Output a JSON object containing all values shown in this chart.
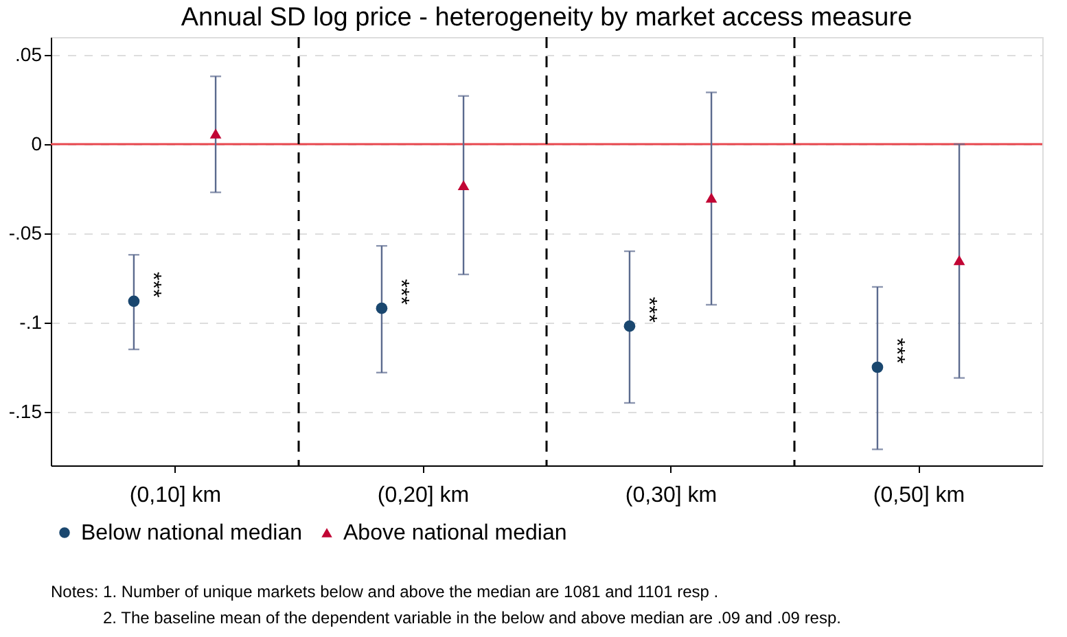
{
  "chart_data": {
    "type": "scatter",
    "title": "Annual SD log price - heterogeneity by market access measure",
    "categories": [
      "(0,10] km",
      "(0,20] km",
      "(0,30] km",
      "(0,50] km"
    ],
    "series": [
      {
        "name": "Below national median",
        "color": "#1a476f",
        "marker": "circle",
        "values": [
          -0.088,
          -0.092,
          -0.102,
          -0.125
        ],
        "value_labels": [
          "***",
          "***",
          "***",
          "***"
        ],
        "errors": [
          [
            -0.115,
            -0.062
          ],
          [
            -0.128,
            -0.057
          ],
          [
            -0.145,
            -0.06
          ],
          [
            -0.171,
            -0.08
          ]
        ]
      },
      {
        "name": "Above national median",
        "color": "#c10534",
        "marker": "triangle",
        "values": [
          0.006,
          -0.023,
          -0.03,
          -0.065
        ],
        "errors": [
          [
            -0.027,
            0.038
          ],
          [
            -0.073,
            0.027
          ],
          [
            -0.09,
            0.029
          ],
          [
            -0.131,
            0.0
          ]
        ]
      }
    ],
    "ylim": [
      -0.18,
      0.06
    ],
    "yticks": [
      {
        "value": -0.15,
        "label": "-.15"
      },
      {
        "value": -0.1,
        "label": "-.1"
      },
      {
        "value": -0.05,
        "label": "-.05"
      },
      0,
      {
        "value": 0.05,
        "label": ".05"
      }
    ],
    "grid": "y",
    "legend": "bottom",
    "ref_lines": [
      {
        "axis": "y",
        "value": 0,
        "color": "#e8484f",
        "line_style": "solid"
      }
    ],
    "annotations": [
      "Notes: 1. Number of unique markets below and above the median are 1081 and 1101 resp .",
      "2. The baseline mean of the dependent variable in the below and above median are .09 and .09 resp."
    ]
  }
}
